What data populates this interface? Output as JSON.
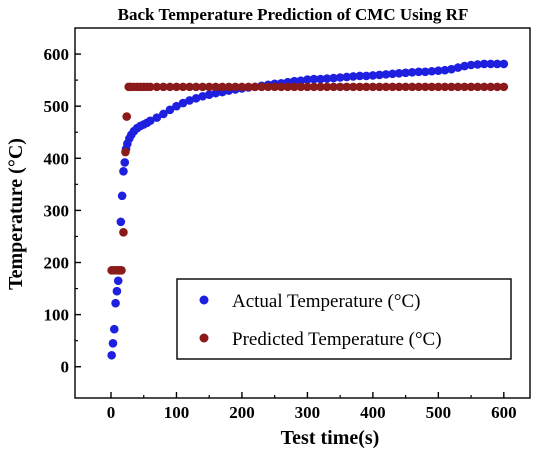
{
  "chart_data": {
    "type": "scatter",
    "title": "Back Temperature Prediction of CMC Using RF",
    "xlabel": "Test time(s)",
    "ylabel": "Temperature (°C)",
    "xlim": [
      -55,
      640
    ],
    "ylim": [
      -60,
      650
    ],
    "xticks": [
      0,
      100,
      200,
      300,
      400,
      500,
      600
    ],
    "yticks": [
      0,
      100,
      200,
      300,
      400,
      500,
      600
    ],
    "grid": false,
    "legend_position": "bottom-right",
    "series": [
      {
        "name": "Actual Temperature (°C)",
        "color": "#1f1fe0",
        "x": [
          1,
          3,
          5,
          7,
          9,
          11,
          13,
          15,
          17,
          19,
          21,
          23,
          25,
          28,
          31,
          35,
          40,
          45,
          50,
          55,
          60,
          70,
          80,
          90,
          100,
          110,
          120,
          130,
          140,
          150,
          160,
          170,
          180,
          190,
          200,
          210,
          220,
          230,
          240,
          250,
          260,
          270,
          280,
          290,
          300,
          310,
          320,
          330,
          340,
          350,
          360,
          370,
          380,
          390,
          400,
          410,
          420,
          430,
          440,
          450,
          460,
          470,
          480,
          490,
          500,
          510,
          520,
          530,
          540,
          550,
          560,
          570,
          580,
          590,
          600
        ],
        "y": [
          22,
          45,
          72,
          122,
          145,
          165,
          185,
          278,
          328,
          375,
          392,
          418,
          428,
          438,
          445,
          452,
          458,
          462,
          465,
          468,
          472,
          478,
          485,
          493,
          500,
          506,
          511,
          515,
          519,
          522,
          525,
          527,
          530,
          532,
          534,
          536,
          537,
          539,
          541,
          543,
          544,
          546,
          548,
          549,
          551,
          552,
          552,
          553,
          554,
          555,
          556,
          557,
          558,
          558,
          559,
          560,
          561,
          562,
          563,
          564,
          565,
          566,
          566,
          567,
          568,
          569,
          571,
          574,
          577,
          579,
          580,
          581,
          581,
          581,
          581
        ]
      },
      {
        "name": "Predicted Temperature (°C)",
        "color": "#8b1a1a",
        "x": [
          1,
          4,
          7,
          10,
          13,
          16,
          19,
          22,
          24,
          27,
          30,
          35,
          40,
          45,
          50,
          55,
          60,
          70,
          80,
          90,
          100,
          110,
          120,
          130,
          140,
          150,
          160,
          170,
          180,
          190,
          200,
          210,
          220,
          230,
          240,
          250,
          260,
          270,
          280,
          290,
          300,
          310,
          320,
          330,
          340,
          350,
          360,
          370,
          380,
          390,
          400,
          410,
          420,
          430,
          440,
          450,
          460,
          470,
          480,
          490,
          500,
          510,
          520,
          530,
          540,
          550,
          560,
          570,
          580,
          590,
          600
        ],
        "y": [
          185,
          185,
          185,
          185,
          185,
          185,
          258,
          412,
          480,
          537,
          537,
          537,
          537,
          537,
          537,
          537,
          537,
          537,
          537,
          537,
          537,
          537,
          537,
          537,
          537,
          537,
          537,
          537,
          537,
          537,
          537,
          537,
          537,
          537,
          537,
          537,
          537,
          537,
          537,
          537,
          537,
          537,
          537,
          537,
          537,
          537,
          537,
          537,
          537,
          537,
          537,
          537,
          537,
          537,
          537,
          537,
          537,
          537,
          537,
          537,
          537,
          537,
          537,
          537,
          537,
          537,
          537,
          537,
          537,
          537,
          537
        ]
      }
    ]
  }
}
